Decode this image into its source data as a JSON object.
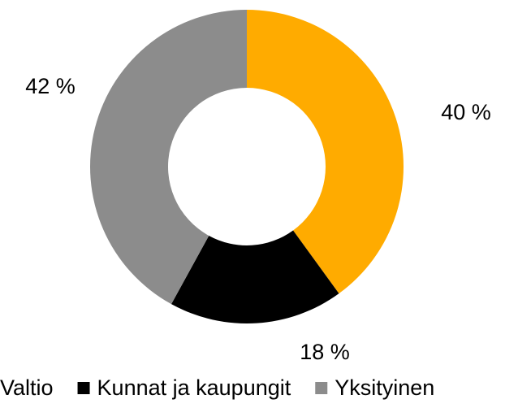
{
  "chart_data": {
    "type": "donut",
    "categories": [
      "Valtio",
      "Kunnat ja kaupungit",
      "Yksityinen"
    ],
    "values": [
      40,
      18,
      42
    ],
    "value_labels": [
      "40 %",
      "18 %",
      "42 %"
    ],
    "colors": [
      "#ffab00",
      "#000000",
      "#8c8c8c"
    ]
  }
}
